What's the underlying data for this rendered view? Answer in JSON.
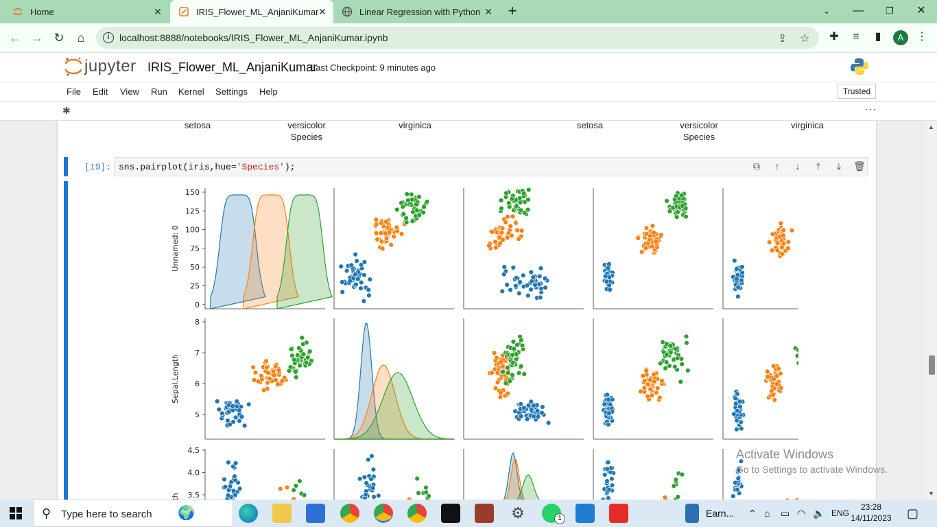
{
  "browser": {
    "tabs": [
      {
        "title": "Home",
        "active": false
      },
      {
        "title": "IRIS_Flower_ML_AnjaniKumar",
        "active": true
      },
      {
        "title": "Linear Regression with Python",
        "active": false
      }
    ],
    "url": "localhost:8888/notebooks/IRIS_Flower_ML_AnjaniKumar.ipynb",
    "profile_initial": "A"
  },
  "jupyter": {
    "logo_text": "jupyter",
    "notebook_name": "IRIS_Flower_ML_AnjaniKumar",
    "checkpoint": "Last Checkpoint: 9 minutes ago",
    "menu": [
      "File",
      "Edit",
      "View",
      "Run",
      "Kernel",
      "Settings",
      "Help"
    ],
    "trusted": "Trusted"
  },
  "previous_output": {
    "labels_left": [
      "setosa",
      "versicolor",
      "virginica"
    ],
    "axis_left": "Species",
    "labels_right": [
      "setosa",
      "versicolor",
      "virginica"
    ],
    "axis_right": "Species"
  },
  "cell": {
    "prompt": "[19]:",
    "code_prefix": "sns.pairplot(iris,hue=",
    "code_string": "'Species'",
    "code_suffix": ");"
  },
  "chart_data": {
    "type": "scatter",
    "title": "",
    "colors": {
      "setosa": "#1f77b4",
      "versicolor": "#ff7f0e",
      "virginica": "#2ca02c"
    },
    "rows": [
      {
        "ylabel": "Unnamed: 0",
        "ticks": [
          "150",
          "125",
          "100",
          "75",
          "50",
          "25",
          "0"
        ],
        "ylim": [
          0,
          150
        ]
      },
      {
        "ylabel": "Sepal.Length",
        "ticks": [
          "8",
          "7",
          "6",
          "5"
        ],
        "ylim": [
          4.3,
          7.9
        ]
      },
      {
        "ylabel": "th",
        "ticks": [
          "4.5",
          "4.0",
          "3.5"
        ],
        "ylim": [
          2.0,
          4.4
        ]
      }
    ]
  },
  "watermark": {
    "line1": "Activate Windows",
    "line2": "Go to Settings to activate Windows."
  },
  "taskbar": {
    "search_placeholder": "Type here to search",
    "earnings": "Earn...",
    "language": "ENG",
    "time": "23:28",
    "date": "14/11/2023",
    "whatsapp_badge": "1"
  }
}
